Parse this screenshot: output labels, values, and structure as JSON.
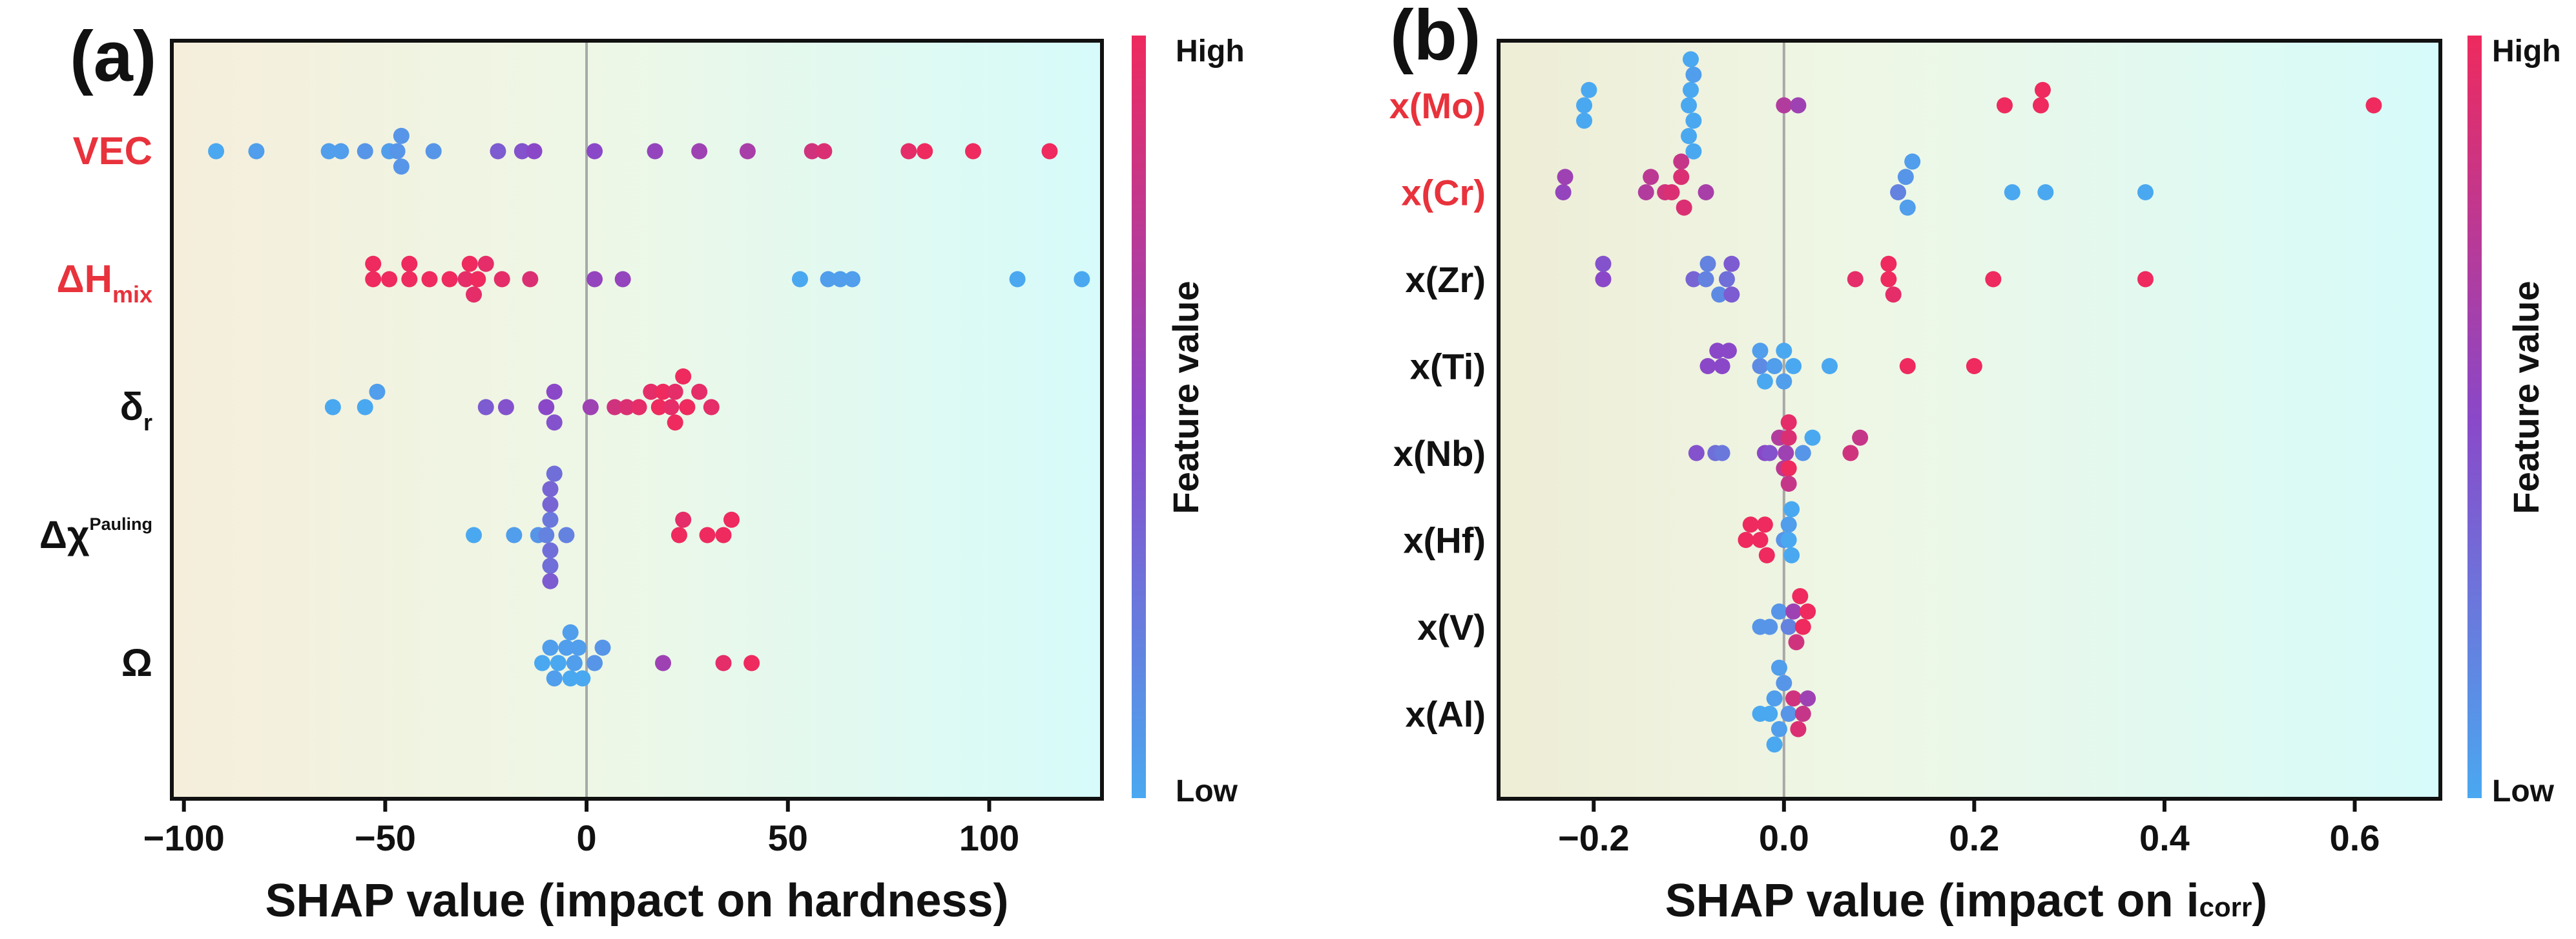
{
  "figure": {
    "colors": {
      "low": "#4aa8f0",
      "mid": "#8a48c8",
      "high": "#ee2a5e",
      "highlight_label": "#e8323c",
      "zero_line": "#a8a8a8"
    }
  },
  "chart_data": [
    {
      "type": "scatter",
      "subtype": "shap-beeswarm",
      "panel_label": "(a)",
      "xlabel": "SHAP value (impact on hardness)",
      "xlim": [
        -103,
        128
      ],
      "xticks": [
        -100,
        -50,
        0,
        50,
        100
      ],
      "xtick_labels": [
        "−100",
        "−50",
        "0",
        "50",
        "100"
      ],
      "colorbar": {
        "title": "Feature value",
        "high_label": "High",
        "low_label": "Low"
      },
      "features": [
        {
          "name": "VEC",
          "sub": "",
          "sup": "",
          "highlight": true,
          "points": [
            {
              "x": -92,
              "c": 0.0
            },
            {
              "x": -82,
              "c": 0.05
            },
            {
              "x": -64,
              "c": 0.05
            },
            {
              "x": -61,
              "c": 0.05
            },
            {
              "x": -55,
              "c": 0.1
            },
            {
              "x": -49,
              "c": 0.05
            },
            {
              "x": -47,
              "c": 0.1
            },
            {
              "x": -46,
              "c": 0.1
            },
            {
              "x": -46,
              "c": 0.1
            },
            {
              "x": -38,
              "c": 0.1
            },
            {
              "x": -22,
              "c": 0.4
            },
            {
              "x": -16,
              "c": 0.45
            },
            {
              "x": -13,
              "c": 0.5
            },
            {
              "x": 2,
              "c": 0.5
            },
            {
              "x": 17,
              "c": 0.55
            },
            {
              "x": 28,
              "c": 0.6
            },
            {
              "x": 40,
              "c": 0.65
            },
            {
              "x": 56,
              "c": 0.85
            },
            {
              "x": 59,
              "c": 0.9
            },
            {
              "x": 80,
              "c": 0.95
            },
            {
              "x": 84,
              "c": 1.0
            },
            {
              "x": 96,
              "c": 1.0
            },
            {
              "x": 115,
              "c": 1.0
            }
          ]
        },
        {
          "name": "ΔH",
          "sub": "mix",
          "sup": "",
          "highlight": true,
          "points": [
            {
              "x": -53,
              "c": 1.0
            },
            {
              "x": -53,
              "c": 1.0
            },
            {
              "x": -49,
              "c": 1.0
            },
            {
              "x": -44,
              "c": 1.0
            },
            {
              "x": -44,
              "c": 1.0
            },
            {
              "x": -39,
              "c": 1.0
            },
            {
              "x": -34,
              "c": 1.0
            },
            {
              "x": -30,
              "c": 0.95
            },
            {
              "x": -29,
              "c": 1.0
            },
            {
              "x": -28,
              "c": 0.95
            },
            {
              "x": -27,
              "c": 1.0
            },
            {
              "x": -25,
              "c": 0.95
            },
            {
              "x": -21,
              "c": 0.95
            },
            {
              "x": -14,
              "c": 0.9
            },
            {
              "x": 2,
              "c": 0.55
            },
            {
              "x": 9,
              "c": 0.55
            },
            {
              "x": 53,
              "c": 0.0
            },
            {
              "x": 60,
              "c": 0.05
            },
            {
              "x": 63,
              "c": 0.05
            },
            {
              "x": 66,
              "c": 0.05
            },
            {
              "x": 107,
              "c": 0.0
            },
            {
              "x": 123,
              "c": 0.0
            }
          ]
        },
        {
          "name": "δ",
          "sub": "r",
          "sup": "",
          "highlight": false,
          "points": [
            {
              "x": -63,
              "c": 0.0
            },
            {
              "x": -55,
              "c": 0.0
            },
            {
              "x": -52,
              "c": 0.05
            },
            {
              "x": -25,
              "c": 0.4
            },
            {
              "x": -20,
              "c": 0.45
            },
            {
              "x": -10,
              "c": 0.5
            },
            {
              "x": -8,
              "c": 0.5
            },
            {
              "x": -8,
              "c": 0.45
            },
            {
              "x": 1,
              "c": 0.6
            },
            {
              "x": 7,
              "c": 0.85
            },
            {
              "x": 10,
              "c": 0.9
            },
            {
              "x": 13,
              "c": 0.95
            },
            {
              "x": 16,
              "c": 0.95
            },
            {
              "x": 18,
              "c": 1.0
            },
            {
              "x": 19,
              "c": 1.0
            },
            {
              "x": 21,
              "c": 0.95
            },
            {
              "x": 22,
              "c": 0.95
            },
            {
              "x": 22,
              "c": 1.0
            },
            {
              "x": 24,
              "c": 1.0
            },
            {
              "x": 25,
              "c": 1.0
            },
            {
              "x": 28,
              "c": 0.95
            },
            {
              "x": 31,
              "c": 0.95
            }
          ]
        },
        {
          "name": "Δχ",
          "sub": "",
          "sup": "Pauling",
          "highlight": false,
          "points": [
            {
              "x": -28,
              "c": 0.0
            },
            {
              "x": -18,
              "c": 0.05
            },
            {
              "x": -12,
              "c": 0.1
            },
            {
              "x": -10,
              "c": 0.2
            },
            {
              "x": -9,
              "c": 0.25
            },
            {
              "x": -9,
              "c": 0.3
            },
            {
              "x": -9,
              "c": 0.35
            },
            {
              "x": -9,
              "c": 0.3
            },
            {
              "x": -9,
              "c": 0.35
            },
            {
              "x": -9,
              "c": 0.4
            },
            {
              "x": -8,
              "c": 0.3
            },
            {
              "x": -5,
              "c": 0.2
            },
            {
              "x": 23,
              "c": 1.0
            },
            {
              "x": 24,
              "c": 0.95
            },
            {
              "x": 30,
              "c": 1.0
            },
            {
              "x": 34,
              "c": 1.0
            },
            {
              "x": 36,
              "c": 1.0
            }
          ]
        },
        {
          "name": "Ω",
          "sub": "",
          "sup": "",
          "highlight": false,
          "points": [
            {
              "x": -11,
              "c": 0.0
            },
            {
              "x": -9,
              "c": 0.05
            },
            {
              "x": -8,
              "c": 0.05
            },
            {
              "x": -7,
              "c": 0.0
            },
            {
              "x": -5,
              "c": 0.05
            },
            {
              "x": -4,
              "c": 0.0
            },
            {
              "x": -4,
              "c": 0.05
            },
            {
              "x": -3,
              "c": 0.05
            },
            {
              "x": -2,
              "c": 0.05
            },
            {
              "x": -1,
              "c": 0.0
            },
            {
              "x": 2,
              "c": 0.1
            },
            {
              "x": 4,
              "c": 0.1
            },
            {
              "x": 19,
              "c": 0.6
            },
            {
              "x": 34,
              "c": 0.95
            },
            {
              "x": 41,
              "c": 1.0
            }
          ]
        }
      ]
    },
    {
      "type": "scatter",
      "subtype": "shap-beeswarm",
      "panel_label": "(b)",
      "xlabel": "SHAP value (impact on i",
      "xlabel_sub": "corr",
      "xlabel_end": ")",
      "xlim": [
        -0.3,
        0.69
      ],
      "xticks": [
        -0.2,
        0.0,
        0.2,
        0.4,
        0.6
      ],
      "xtick_labels": [
        "−0.2",
        "0.0",
        "0.2",
        "0.4",
        "0.6"
      ],
      "colorbar": {
        "title": "Feature value",
        "high_label": "High",
        "low_label": "Low"
      },
      "features": [
        {
          "name": "x(Mo)",
          "sub": "",
          "sup": "",
          "highlight": true,
          "points": [
            {
              "x": -0.21,
              "c": 0.0
            },
            {
              "x": -0.205,
              "c": 0.0
            },
            {
              "x": -0.21,
              "c": 0.0
            },
            {
              "x": -0.1,
              "c": 0.0
            },
            {
              "x": -0.098,
              "c": 0.0
            },
            {
              "x": -0.095,
              "c": 0.0
            },
            {
              "x": -0.095,
              "c": 0.05
            },
            {
              "x": -0.1,
              "c": 0.0
            },
            {
              "x": -0.098,
              "c": 0.0
            },
            {
              "x": -0.095,
              "c": 0.0
            },
            {
              "x": 0.0,
              "c": 0.7
            },
            {
              "x": 0.015,
              "c": 0.6
            },
            {
              "x": 0.232,
              "c": 1.0
            },
            {
              "x": 0.27,
              "c": 1.0
            },
            {
              "x": 0.272,
              "c": 1.0
            },
            {
              "x": 0.62,
              "c": 1.0
            }
          ]
        },
        {
          "name": "x(Cr)",
          "sub": "",
          "sup": "",
          "highlight": true,
          "points": [
            {
              "x": -0.232,
              "c": 0.55
            },
            {
              "x": -0.23,
              "c": 0.6
            },
            {
              "x": -0.145,
              "c": 0.7
            },
            {
              "x": -0.14,
              "c": 0.75
            },
            {
              "x": -0.125,
              "c": 0.85
            },
            {
              "x": -0.118,
              "c": 0.9
            },
            {
              "x": -0.108,
              "c": 0.9
            },
            {
              "x": -0.105,
              "c": 0.9
            },
            {
              "x": -0.108,
              "c": 0.8
            },
            {
              "x": -0.082,
              "c": 0.65
            },
            {
              "x": 0.12,
              "c": 0.2
            },
            {
              "x": 0.128,
              "c": 0.1
            },
            {
              "x": 0.13,
              "c": 0.05
            },
            {
              "x": 0.135,
              "c": 0.05
            },
            {
              "x": 0.24,
              "c": 0.0
            },
            {
              "x": 0.275,
              "c": 0.0
            },
            {
              "x": 0.38,
              "c": 0.0
            }
          ]
        },
        {
          "name": "x(Zr)",
          "sub": "",
          "sup": "",
          "highlight": false,
          "points": [
            {
              "x": -0.19,
              "c": 0.5
            },
            {
              "x": -0.19,
              "c": 0.45
            },
            {
              "x": -0.095,
              "c": 0.35
            },
            {
              "x": -0.082,
              "c": 0.2
            },
            {
              "x": -0.08,
              "c": 0.2
            },
            {
              "x": -0.068,
              "c": 0.15
            },
            {
              "x": -0.06,
              "c": 0.3
            },
            {
              "x": -0.055,
              "c": 0.4
            },
            {
              "x": -0.055,
              "c": 0.4
            },
            {
              "x": 0.075,
              "c": 0.95
            },
            {
              "x": 0.11,
              "c": 1.0
            },
            {
              "x": 0.11,
              "c": 1.0
            },
            {
              "x": 0.115,
              "c": 0.95
            },
            {
              "x": 0.22,
              "c": 1.0
            },
            {
              "x": 0.38,
              "c": 1.0
            }
          ]
        },
        {
          "name": "x(Ti)",
          "sub": "",
          "sup": "",
          "highlight": false,
          "points": [
            {
              "x": -0.08,
              "c": 0.5
            },
            {
              "x": -0.07,
              "c": 0.5
            },
            {
              "x": -0.065,
              "c": 0.5
            },
            {
              "x": -0.058,
              "c": 0.5
            },
            {
              "x": -0.025,
              "c": 0.15
            },
            {
              "x": -0.025,
              "c": 0.05
            },
            {
              "x": -0.02,
              "c": 0.0
            },
            {
              "x": -0.01,
              "c": 0.05
            },
            {
              "x": 0.0,
              "c": 0.0
            },
            {
              "x": 0.0,
              "c": 0.05
            },
            {
              "x": 0.01,
              "c": 0.0
            },
            {
              "x": 0.048,
              "c": 0.0
            },
            {
              "x": 0.13,
              "c": 1.0
            },
            {
              "x": 0.2,
              "c": 1.0
            }
          ]
        },
        {
          "name": "x(Nb)",
          "sub": "",
          "sup": "",
          "highlight": false,
          "points": [
            {
              "x": -0.092,
              "c": 0.45
            },
            {
              "x": -0.072,
              "c": 0.3
            },
            {
              "x": -0.065,
              "c": 0.25
            },
            {
              "x": -0.02,
              "c": 0.5
            },
            {
              "x": -0.015,
              "c": 0.45
            },
            {
              "x": -0.005,
              "c": 0.7
            },
            {
              "x": 0.0,
              "c": 0.75
            },
            {
              "x": 0.002,
              "c": 0.6
            },
            {
              "x": 0.005,
              "c": 0.9
            },
            {
              "x": 0.005,
              "c": 1.0
            },
            {
              "x": 0.005,
              "c": 0.95
            },
            {
              "x": 0.005,
              "c": 0.8
            },
            {
              "x": 0.02,
              "c": 0.1
            },
            {
              "x": 0.03,
              "c": 0.0
            },
            {
              "x": 0.07,
              "c": 0.85
            },
            {
              "x": 0.08,
              "c": 0.8
            }
          ]
        },
        {
          "name": "x(Hf)",
          "sub": "",
          "sup": "",
          "highlight": false,
          "points": [
            {
              "x": -0.04,
              "c": 1.0
            },
            {
              "x": -0.035,
              "c": 1.0
            },
            {
              "x": -0.025,
              "c": 1.0
            },
            {
              "x": -0.02,
              "c": 1.0
            },
            {
              "x": -0.018,
              "c": 1.0
            },
            {
              "x": 0.0,
              "c": 0.1
            },
            {
              "x": 0.005,
              "c": 0.0
            },
            {
              "x": 0.005,
              "c": 0.05
            },
            {
              "x": 0.008,
              "c": 0.0
            },
            {
              "x": 0.008,
              "c": 0.0
            }
          ]
        },
        {
          "name": "x(V)",
          "sub": "",
          "sup": "",
          "highlight": false,
          "points": [
            {
              "x": -0.025,
              "c": 0.1
            },
            {
              "x": -0.015,
              "c": 0.1
            },
            {
              "x": -0.005,
              "c": 0.1
            },
            {
              "x": 0.005,
              "c": 0.2
            },
            {
              "x": 0.01,
              "c": 0.6
            },
            {
              "x": 0.013,
              "c": 0.85
            },
            {
              "x": 0.017,
              "c": 1.0
            },
            {
              "x": 0.02,
              "c": 1.0
            },
            {
              "x": 0.025,
              "c": 1.0
            }
          ]
        },
        {
          "name": "x(Al)",
          "sub": "",
          "sup": "",
          "highlight": false,
          "points": [
            {
              "x": -0.025,
              "c": 0.0
            },
            {
              "x": -0.015,
              "c": 0.0
            },
            {
              "x": -0.01,
              "c": 0.05
            },
            {
              "x": -0.005,
              "c": 0.05
            },
            {
              "x": 0.0,
              "c": 0.1
            },
            {
              "x": 0.005,
              "c": 0.1
            },
            {
              "x": 0.01,
              "c": 0.85
            },
            {
              "x": 0.015,
              "c": 0.9
            },
            {
              "x": 0.02,
              "c": 0.8
            },
            {
              "x": 0.025,
              "c": 0.6
            },
            {
              "x": -0.01,
              "c": 0.0
            },
            {
              "x": -0.005,
              "c": 0.05
            }
          ]
        }
      ]
    }
  ]
}
